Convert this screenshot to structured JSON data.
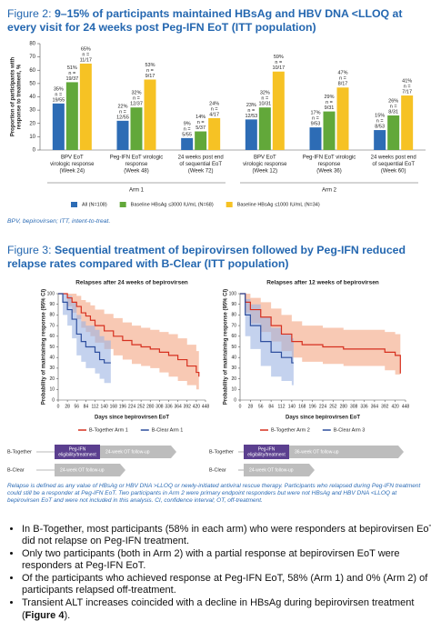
{
  "figure2": {
    "label": "Figure 2:",
    "title": "9–15% of participants maintained HBsAg and HBV DNA <LLOQ at every visit for 24 weeks post Peg-IFN EoT (ITT population)"
  },
  "footnote2": "BPV, bepirovirsen; ITT, intent-to-treat.",
  "figure3": {
    "label": "Figure 3:",
    "title": "Sequential treatment of bepirovirsen followed by Peg-IFN reduced relapse rates compared with B-Clear (ITT population)"
  },
  "chart_data": [
    {
      "type": "bar",
      "ylabel": [
        "Proportion of participants with",
        "response to treatment, %"
      ],
      "categories": [
        [
          "BPV EoT",
          "virologic response",
          "(Week 24)"
        ],
        [
          "Peg-IFN EoT virologic",
          "response",
          "(Week 48)"
        ],
        [
          "24 weeks post end",
          "of sequential EoT",
          "(Week 72)"
        ],
        [
          "BPV EoT",
          "virologic response",
          "(Week 12)"
        ],
        [
          "Peg-IFN EoT virologic",
          "response",
          "(Week 36)"
        ],
        [
          "24 weeks post end",
          "of sequential EoT",
          "(Week 60)"
        ]
      ],
      "arms": [
        "Arm 1",
        "Arm 2"
      ],
      "ylim": [
        0,
        80
      ],
      "yticks": [
        0,
        10,
        20,
        30,
        40,
        50,
        60,
        70,
        80
      ],
      "series": [
        {
          "name": "All (N=108)",
          "color": "#2d6cb5",
          "values": [
            35,
            22,
            9,
            23,
            17,
            15
          ],
          "value_labels": [
            "35%",
            "22%",
            "9%",
            "23%",
            "17%",
            "15%"
          ],
          "n_labels": [
            [
              "n =",
              "19/55"
            ],
            [
              "n =",
              "12/55"
            ],
            [
              "n =",
              "5/55"
            ],
            [
              "n =",
              "12/53"
            ],
            [
              "n =",
              "9/53"
            ],
            [
              "n =",
              "8/53"
            ]
          ]
        },
        {
          "name": "Baseline HBsAg ≤3000 IU/mL (N=68)",
          "color": "#62a83a",
          "values": [
            51,
            32,
            14,
            32,
            29,
            26
          ],
          "value_labels": [
            "51%",
            "32%",
            "14%",
            "32%",
            "29%",
            "26%"
          ],
          "n_labels": [
            [
              "n =",
              "19/37"
            ],
            [
              "n =",
              "12/37"
            ],
            [
              "n =",
              "5/37"
            ],
            [
              "n =",
              "10/31"
            ],
            [
              "n =",
              "9/31"
            ],
            [
              "n =",
              "8/31"
            ]
          ]
        },
        {
          "name": "Baseline HBsAg ≤1000 IU/mL (N=34)",
          "color": "#f6c224",
          "values": [
            65,
            53,
            24,
            59,
            47,
            41
          ],
          "value_labels": [
            "65%",
            "53%",
            "24%",
            "59%",
            "47%",
            "41%"
          ],
          "n_labels": [
            [
              "n =",
              "11/17"
            ],
            [
              "n =",
              "9/17"
            ],
            [
              "n =",
              "4/17"
            ],
            [
              "n =",
              "10/17"
            ],
            [
              "n =",
              "8/17"
            ],
            [
              "n =",
              "7/17"
            ]
          ]
        }
      ]
    },
    {
      "type": "km",
      "title": "Relapses after 24 weeks of bepirovirsen",
      "xlabel": "Days since bepirovirsen EoT",
      "ylabel": "Probability of maintaining response (95% CI)",
      "xlim": [
        0,
        448
      ],
      "xticks": [
        0,
        28,
        56,
        84,
        112,
        140,
        168,
        196,
        224,
        252,
        280,
        308,
        336,
        364,
        392,
        420,
        448
      ],
      "ylim": [
        0,
        100
      ],
      "yticks": [
        0,
        10,
        20,
        30,
        40,
        50,
        60,
        70,
        80,
        90,
        100
      ],
      "series": [
        {
          "name": "B-Together Arm 1",
          "color": "#d6301f",
          "ci_color": "#f4a582",
          "x": [
            0,
            28,
            42,
            56,
            70,
            84,
            98,
            112,
            140,
            168,
            196,
            224,
            252,
            280,
            308,
            336,
            364,
            392,
            420,
            428
          ],
          "values": [
            100,
            96,
            92,
            88,
            82,
            79,
            75,
            70,
            65,
            60,
            56,
            52,
            50,
            48,
            45,
            42,
            38,
            32,
            26,
            22
          ],
          "ci_low": [
            100,
            88,
            82,
            76,
            68,
            64,
            60,
            54,
            48,
            42,
            38,
            34,
            32,
            30,
            26,
            22,
            18,
            14,
            10,
            8
          ],
          "ci_high": [
            100,
            100,
            100,
            98,
            94,
            92,
            89,
            85,
            81,
            77,
            73,
            70,
            68,
            66,
            64,
            62,
            58,
            52,
            46,
            40
          ]
        },
        {
          "name": "B-Clear Arm 1",
          "color": "#2e4f9e",
          "ci_color": "#9db4e2",
          "x": [
            0,
            14,
            28,
            42,
            56,
            70,
            84,
            112,
            126,
            140,
            160
          ],
          "values": [
            100,
            92,
            85,
            76,
            62,
            55,
            50,
            45,
            38,
            35,
            35
          ],
          "ci_low": [
            100,
            80,
            70,
            58,
            42,
            36,
            30,
            25,
            20,
            16,
            16
          ],
          "ci_high": [
            100,
            100,
            98,
            92,
            80,
            74,
            70,
            66,
            60,
            56,
            56
          ]
        }
      ]
    },
    {
      "type": "km",
      "title": "Relapses after 12 weeks of bepirovirsen",
      "xlabel": "Days since bepirovirsen EoT",
      "ylabel": "Probability of maintaining response (95% CI)",
      "xlim": [
        0,
        448
      ],
      "xticks": [
        0,
        28,
        56,
        84,
        112,
        140,
        168,
        196,
        224,
        252,
        280,
        308,
        336,
        364,
        392,
        420,
        448
      ],
      "ylim": [
        0,
        100
      ],
      "yticks": [
        0,
        10,
        20,
        30,
        40,
        50,
        60,
        70,
        80,
        90,
        100
      ],
      "series": [
        {
          "name": "B-Together Arm 2",
          "color": "#d6301f",
          "ci_color": "#f4a582",
          "x": [
            0,
            14,
            28,
            56,
            84,
            112,
            140,
            168,
            224,
            280,
            336,
            392,
            420,
            434
          ],
          "values": [
            100,
            92,
            85,
            78,
            70,
            62,
            55,
            52,
            50,
            48,
            48,
            45,
            42,
            25
          ],
          "ci_low": [
            100,
            82,
            72,
            64,
            55,
            46,
            40,
            36,
            34,
            32,
            32,
            28,
            24,
            5
          ],
          "ci_high": [
            100,
            100,
            96,
            92,
            86,
            80,
            74,
            70,
            68,
            66,
            66,
            64,
            62,
            58
          ]
        },
        {
          "name": "B-Clear Arm 3",
          "color": "#2e4f9e",
          "ci_color": "#9db4e2",
          "x": [
            0,
            14,
            28,
            56,
            84,
            112,
            140,
            145
          ],
          "values": [
            100,
            80,
            70,
            55,
            45,
            40,
            35,
            35
          ],
          "ci_low": [
            100,
            60,
            48,
            32,
            22,
            18,
            14,
            14
          ],
          "ci_high": [
            100,
            95,
            90,
            78,
            68,
            62,
            58,
            58
          ]
        }
      ]
    }
  ],
  "timelines": [
    {
      "rows": [
        {
          "label": "B-Together",
          "steps": [
            [
              "Peg-IFN",
              "eligibility/treatment"
            ],
            [
              "24-week OT follow-up"
            ]
          ]
        },
        {
          "label": "B-Clear",
          "steps": [
            [
              "24-week OT follow-up"
            ]
          ]
        }
      ]
    },
    {
      "rows": [
        {
          "label": "B-Together",
          "steps": [
            [
              "Peg-IFN",
              "eligibility/treatment"
            ],
            [
              "36-week OT follow-up"
            ]
          ]
        },
        {
          "label": "B-Clear",
          "steps": [
            [
              "24-week OT follow-up"
            ]
          ]
        }
      ]
    }
  ],
  "footnote3": "Relapse is defined as any value of HBsAg or HBV DNA >LLOQ or newly-initiated antiviral rescue therapy. Participants who relapsed during Peg-IFN treatment could still be a responder at Peg-IFN EoT. Two participants in Arm 2 were primary endpoint responders but were not HBsAg and HBV DNA <LLOQ at bepirovirsen EoT and were not included in this analysis. CI, confidence interval; OT, off-treatment.",
  "bullets": [
    [
      "In B-Together, most participants (58% in each arm) who were responders at bepirovirsen EoT did not relapse on Peg-IFN treatment."
    ],
    [
      "Only two participants (both in Arm 2) with a partial response at bepirovirsen EoT were responders at Peg-IFN EoT."
    ],
    [
      "Of the participants who achieved response at Peg-IFN EoT, 58% (Arm 1) and 0% (Arm 2) of participants relapsed off-treatment."
    ],
    [
      "Transient ALT increases coincided with a decline in HBsAg during bepirovirsen treatment (",
      "Figure 4",
      ")."
    ]
  ]
}
